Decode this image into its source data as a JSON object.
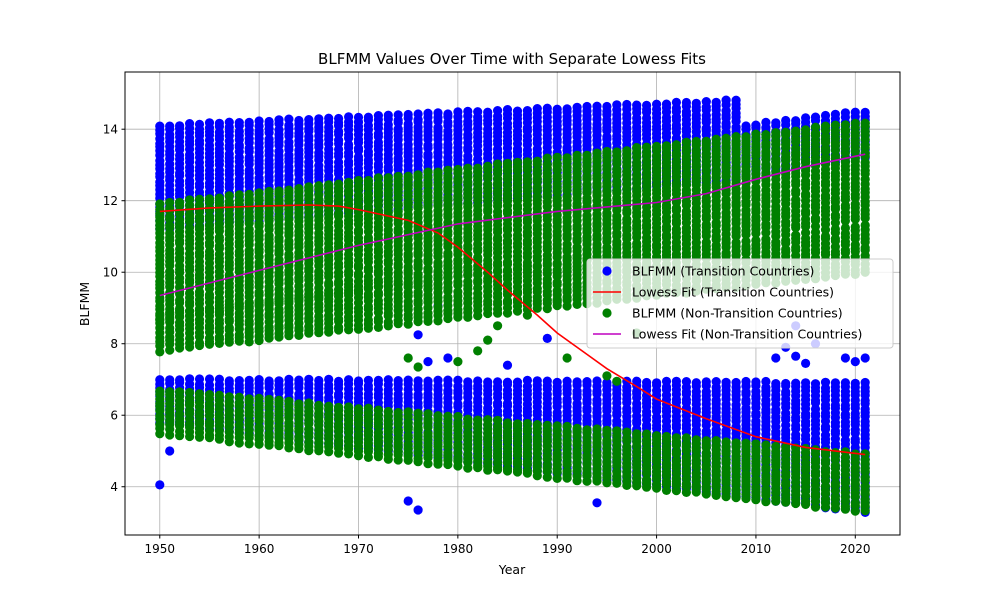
{
  "chart_data": {
    "type": "scatter",
    "title": "BLFMM Values Over Time with Separate Lowess Fits",
    "xlabel": "Year",
    "ylabel": "BLFMM",
    "xlim": [
      1946.5,
      2024.5
    ],
    "ylim": [
      2.65,
      15.6
    ],
    "xticks": [
      1950,
      1960,
      1970,
      1980,
      1990,
      2000,
      2010,
      2020
    ],
    "yticks": [
      4,
      6,
      8,
      10,
      12,
      14
    ],
    "grid": true,
    "legend_position": "center-right",
    "series": [
      {
        "name": "BLFMM (Transition Countries)",
        "kind": "scatter",
        "color": "#0000ff",
        "bands": [
          {
            "x": [
              1950,
              2008
            ],
            "low": [
              11.2,
              12.6
            ],
            "high": [
              14.1,
              14.8
            ]
          },
          {
            "x": [
              2009,
              2021
            ],
            "low": [
              12.7,
              13.2
            ],
            "high": [
              14.1,
              14.5
            ]
          },
          {
            "x": [
              1950,
              2021
            ],
            "low": [
              5.8,
              3.3
            ],
            "high": [
              7.0,
              6.9
            ]
          }
        ],
        "outliers": [
          [
            1950,
            4.05
          ],
          [
            1951,
            5.0
          ],
          [
            1975,
            3.6
          ],
          [
            1976,
            3.35
          ],
          [
            1994,
            3.55
          ],
          [
            1976,
            8.25
          ],
          [
            1977,
            7.5
          ],
          [
            1978,
            9.05
          ],
          [
            1979,
            7.6
          ],
          [
            1985,
            7.4
          ],
          [
            1989,
            8.15
          ],
          [
            2012,
            7.6
          ],
          [
            2013,
            7.9
          ],
          [
            2014,
            7.65
          ],
          [
            2014,
            8.5
          ],
          [
            2015,
            7.45
          ],
          [
            2016,
            8.0
          ],
          [
            2019,
            7.6
          ],
          [
            2020,
            7.5
          ],
          [
            2021,
            7.6
          ]
        ]
      },
      {
        "name": "Lowess Fit (Transition Countries)",
        "kind": "line",
        "color": "#ff0000",
        "x": [
          1950,
          1955,
          1960,
          1965,
          1968,
          1970,
          1975,
          1978,
          1980,
          1983,
          1985,
          1988,
          1990,
          1993,
          1995,
          1998,
          2000,
          2005,
          2010,
          2015,
          2021
        ],
        "y": [
          11.7,
          11.8,
          11.85,
          11.88,
          11.85,
          11.75,
          11.45,
          11.1,
          10.7,
          10.0,
          9.5,
          8.8,
          8.3,
          7.7,
          7.3,
          6.8,
          6.45,
          5.9,
          5.4,
          5.1,
          4.9
        ]
      },
      {
        "name": "BLFMM (Non-Transition Countries)",
        "kind": "scatter",
        "color": "#008000",
        "bands": [
          {
            "x": [
              1950,
              2021
            ],
            "low": [
              8.7,
              11.5
            ],
            "high": [
              11.9,
              14.2
            ]
          },
          {
            "x": [
              1950,
              2021
            ],
            "low": [
              7.8,
              10.0
            ],
            "high": [
              8.8,
              11.3
            ]
          },
          {
            "x": [
              1950,
              2021
            ],
            "low": [
              5.5,
              3.3
            ],
            "high": [
              6.7,
              4.9
            ]
          }
        ],
        "outliers": [
          [
            1975,
            7.6
          ],
          [
            1976,
            7.35
          ],
          [
            1980,
            7.5
          ],
          [
            1982,
            7.8
          ],
          [
            1983,
            8.1
          ],
          [
            1984,
            8.5
          ],
          [
            1987,
            8.8
          ],
          [
            1990,
            9.2
          ],
          [
            1991,
            7.6
          ],
          [
            1995,
            7.1
          ],
          [
            1996,
            6.95
          ],
          [
            1998,
            5.45
          ],
          [
            1998,
            8.3
          ]
        ]
      },
      {
        "name": "Lowess Fit (Non-Transition Countries)",
        "kind": "line",
        "color": "#bf00bf",
        "x": [
          1950,
          1960,
          1970,
          1980,
          1990,
          2000,
          2005,
          2010,
          2015,
          2021
        ],
        "y": [
          9.35,
          10.05,
          10.75,
          11.35,
          11.7,
          11.95,
          12.2,
          12.6,
          12.95,
          13.3
        ]
      }
    ]
  }
}
